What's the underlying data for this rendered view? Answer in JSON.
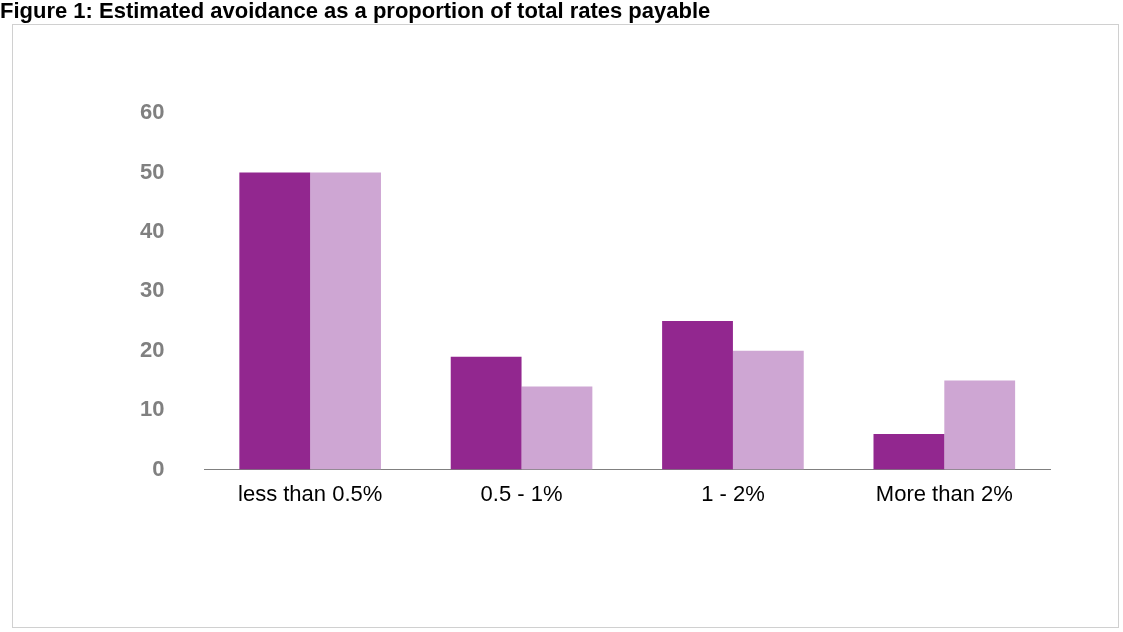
{
  "chart_data": {
    "type": "bar",
    "title": "Figure 1: Estimated avoidance as a proportion of total rates payable",
    "categories": [
      "less than 0.5%",
      "0.5 - 1%",
      "1 - 2%",
      "More than 2%"
    ],
    "series": [
      {
        "color": "#92278f",
        "values": [
          50,
          19,
          25,
          6
        ]
      },
      {
        "color": "#cea6d3",
        "values": [
          50,
          14,
          20,
          15
        ]
      }
    ],
    "ylim": [
      0,
      60
    ],
    "yticks": [
      0,
      10,
      20,
      30,
      40,
      50,
      60
    ],
    "grid": false,
    "legend": false
  }
}
